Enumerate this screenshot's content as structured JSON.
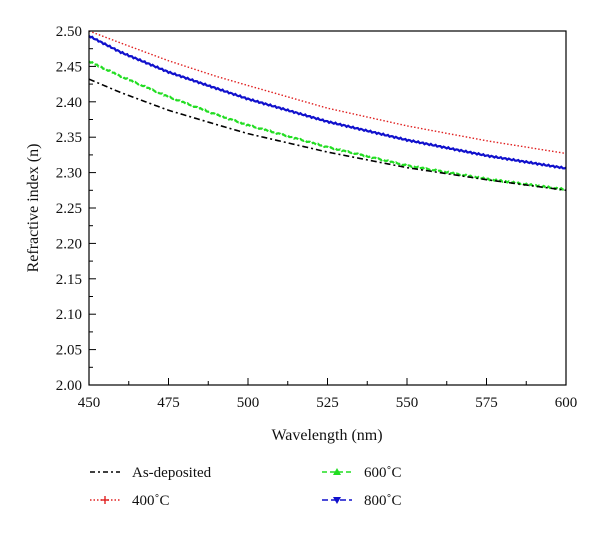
{
  "chart_data": {
    "type": "line",
    "xlabel": "Wavelength (nm)",
    "ylabel": "Refractive index (n)",
    "xlim": [
      450,
      600
    ],
    "ylim": [
      2.0,
      2.5
    ],
    "xticks": [
      "450",
      "475",
      "500",
      "525",
      "550",
      "575",
      "600"
    ],
    "yticks": [
      "2.00",
      "2.05",
      "2.10",
      "2.15",
      "2.20",
      "2.25",
      "2.30",
      "2.35",
      "2.40",
      "2.45",
      "2.50"
    ],
    "grid": false,
    "legend_position": "bottom",
    "series": [
      {
        "name": "As-deposited",
        "color": "#000000",
        "style": "dash-dot",
        "x": [
          450,
          460,
          475,
          490,
          500,
          525,
          550,
          575,
          600
        ],
        "y": [
          2.432,
          2.413,
          2.388,
          2.368,
          2.355,
          2.329,
          2.307,
          2.29,
          2.275
        ]
      },
      {
        "name": "400˚C",
        "color": "#e02020",
        "style": "dotted-plus",
        "x": [
          450,
          460,
          475,
          490,
          500,
          525,
          550,
          575,
          600
        ],
        "y": [
          2.5,
          2.483,
          2.458,
          2.436,
          2.423,
          2.391,
          2.366,
          2.345,
          2.327
        ]
      },
      {
        "name": "600˚C",
        "color": "#22dd22",
        "style": "dashed-triangle",
        "x": [
          450,
          460,
          475,
          490,
          500,
          525,
          550,
          575,
          600
        ],
        "y": [
          2.457,
          2.436,
          2.407,
          2.382,
          2.367,
          2.336,
          2.31,
          2.291,
          2.276
        ]
      },
      {
        "name": "800˚C",
        "color": "#1010cc",
        "style": "solid-down-triangle",
        "x": [
          450,
          460,
          475,
          490,
          500,
          525,
          550,
          575,
          600
        ],
        "y": [
          2.493,
          2.47,
          2.442,
          2.419,
          2.404,
          2.372,
          2.346,
          2.324,
          2.306
        ]
      }
    ]
  }
}
